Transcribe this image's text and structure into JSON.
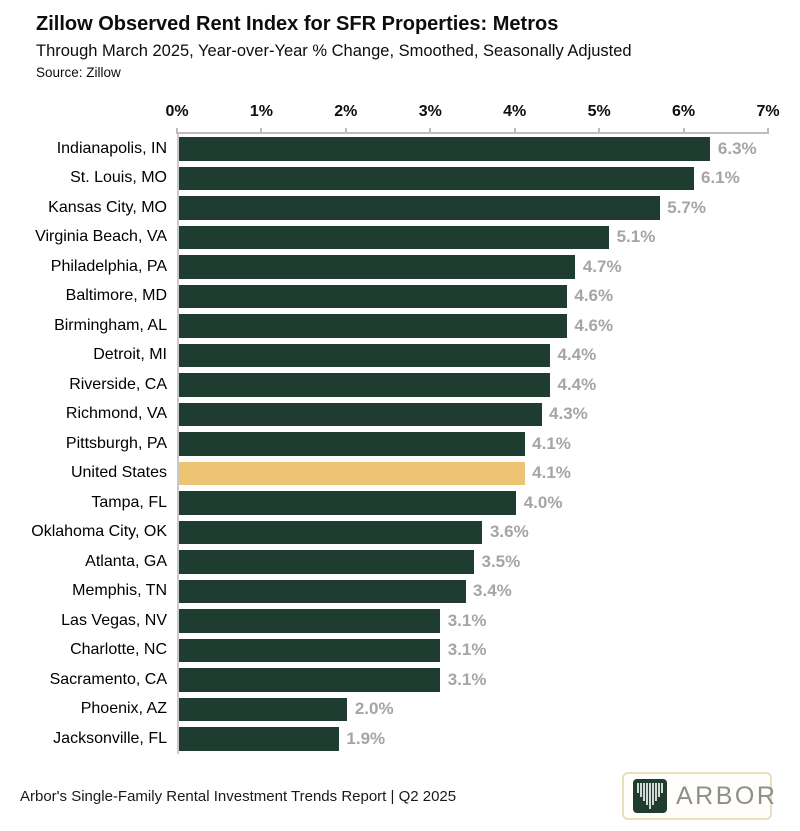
{
  "header": {
    "title": "Zillow Observed Rent Index for SFR Properties: Metros",
    "subtitle": "Through March 2025, Year-over-Year % Change, Smoothed, Seasonally Adjusted",
    "source": "Source: Zillow"
  },
  "chart_data": {
    "type": "bar",
    "orientation": "horizontal",
    "title": "Zillow Observed Rent Index for SFR Properties: Metros",
    "subtitle": "Through March 2025, Year-over-Year % Change, Smoothed, Seasonally Adjusted",
    "source": "Source: Zillow",
    "categories": [
      "Indianapolis, IN",
      "St. Louis, MO",
      "Kansas City, MO",
      "Virginia Beach, VA",
      "Philadelphia, PA",
      "Baltimore, MD",
      "Birmingham, AL",
      "Detroit, MI",
      "Riverside, CA",
      "Richmond, VA",
      "Pittsburgh, PA",
      "United States",
      "Tampa, FL",
      "Oklahoma City, OK",
      "Atlanta, GA",
      "Memphis, TN",
      "Las Vegas, NV",
      "Charlotte, NC",
      "Sacramento, CA",
      "Phoenix, AZ",
      "Jacksonville, FL"
    ],
    "values": [
      6.3,
      6.1,
      5.7,
      5.1,
      4.7,
      4.6,
      4.6,
      4.4,
      4.4,
      4.3,
      4.1,
      4.1,
      4.0,
      3.6,
      3.5,
      3.4,
      3.1,
      3.1,
      3.1,
      2.0,
      1.9
    ],
    "value_labels": [
      "6.3%",
      "6.1%",
      "5.7%",
      "5.1%",
      "4.7%",
      "4.6%",
      "4.6%",
      "4.4%",
      "4.4%",
      "4.3%",
      "4.1%",
      "4.1%",
      "4.0%",
      "3.6%",
      "3.5%",
      "3.4%",
      "3.1%",
      "3.1%",
      "3.1%",
      "2.0%",
      "1.9%"
    ],
    "highlight_category": "United States",
    "axis": {
      "position": "top",
      "min": 0,
      "max": 7,
      "ticks": [
        "0%",
        "1%",
        "2%",
        "3%",
        "4%",
        "5%",
        "6%",
        "7%"
      ]
    },
    "grid": "off",
    "legend": "none",
    "colors": {
      "bar": "#1e3c30",
      "highlight": "#ecc473",
      "value_label": "#a5a5a5",
      "axis": "#bdbdbd"
    }
  },
  "footer": {
    "report_label": "Arbor's Single-Family Rental Investment Trends Report | Q2 2025",
    "logo_text": "ARBOR",
    "logo_mark": "arbor-tree-icon"
  }
}
